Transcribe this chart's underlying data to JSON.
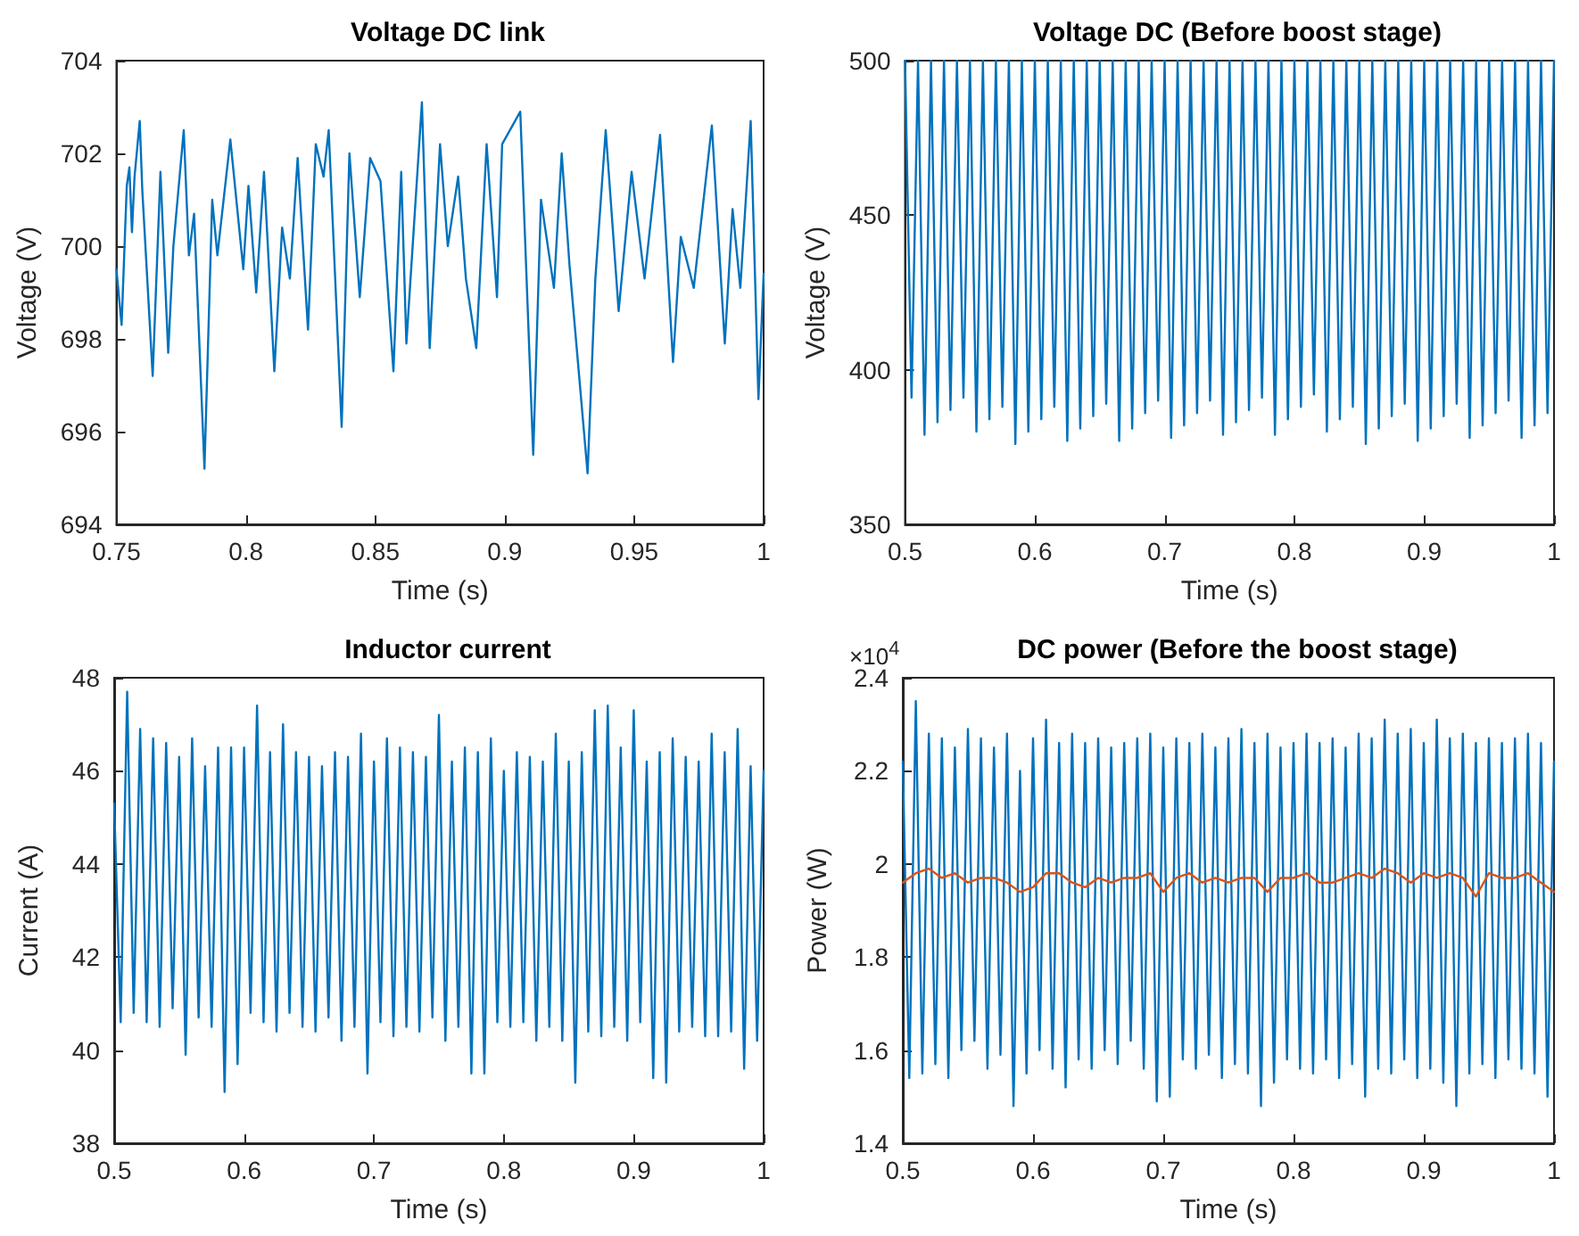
{
  "chart_data": [
    {
      "type": "line",
      "title": "Voltage DC link",
      "xlabel": "Time (s)",
      "ylabel": "Voltage (V)",
      "xlim": [
        0.75,
        1
      ],
      "xticks": [
        0.75,
        0.8,
        0.85,
        0.9,
        0.95,
        1
      ],
      "ylim": [
        694,
        704
      ],
      "yticks": [
        694,
        696,
        698,
        700,
        702,
        704
      ],
      "grid": false,
      "series": [
        {
          "color": "#0072bd",
          "x": [
            0.75,
            0.752,
            0.754,
            0.755,
            0.756,
            0.757,
            0.759,
            0.76,
            0.764,
            0.767,
            0.77,
            0.772,
            0.776,
            0.778,
            0.78,
            0.784,
            0.787,
            0.789,
            0.794,
            0.799,
            0.801,
            0.804,
            0.807,
            0.811,
            0.814,
            0.817,
            0.82,
            0.824,
            0.827,
            0.83,
            0.832,
            0.837,
            0.84,
            0.844,
            0.848,
            0.852,
            0.857,
            0.86,
            0.862,
            0.868,
            0.871,
            0.875,
            0.878,
            0.882,
            0.885,
            0.889,
            0.893,
            0.897,
            0.899,
            0.906,
            0.911,
            0.914,
            0.919,
            0.922,
            0.925,
            0.932,
            0.935,
            0.939,
            0.944,
            0.949,
            0.954,
            0.96,
            0.965,
            0.968,
            0.973,
            0.98,
            0.985,
            0.988,
            0.991,
            0.995,
            0.998,
            1
          ],
          "values": [
            699.5,
            698.3,
            701.3,
            701.7,
            700.3,
            701.5,
            702.7,
            701.2,
            697.2,
            701.6,
            697.7,
            700,
            702.5,
            699.8,
            700.7,
            695.2,
            701,
            699.8,
            702.3,
            699.5,
            701.3,
            699,
            701.6,
            697.3,
            700.4,
            699.3,
            701.9,
            698.2,
            702.2,
            701.5,
            702.5,
            696.1,
            702,
            698.9,
            701.9,
            701.4,
            697.3,
            701.6,
            697.9,
            703.1,
            697.8,
            702.2,
            700,
            701.5,
            699.3,
            697.8,
            702.2,
            698.9,
            702.2,
            702.9,
            695.5,
            701,
            699.1,
            702,
            699.6,
            695.1,
            699.3,
            702.5,
            698.6,
            701.6,
            699.3,
            702.4,
            697.5,
            700.2,
            699.1,
            702.6,
            697.9,
            700.8,
            699.1,
            702.7,
            696.7,
            699.4
          ]
        }
      ]
    },
    {
      "type": "line",
      "title": "Voltage DC (Before boost stage)",
      "xlabel": "Time (s)",
      "ylabel": "Voltage (V)",
      "xlim": [
        0.5,
        1
      ],
      "xticks": [
        0.5,
        0.6,
        0.7,
        0.8,
        0.9,
        1
      ],
      "ylim": [
        350,
        500
      ],
      "yticks": [
        350,
        400,
        450,
        500
      ],
      "grid": false,
      "x": [
        0.5,
        0.505,
        0.51,
        0.515,
        0.52,
        0.525,
        0.53,
        0.535,
        0.54,
        0.545,
        0.55,
        0.555,
        0.56,
        0.565,
        0.57,
        0.575,
        0.58,
        0.585,
        0.59,
        0.595,
        0.6,
        0.605,
        0.61,
        0.615,
        0.62,
        0.625,
        0.63,
        0.635,
        0.64,
        0.645,
        0.65,
        0.655,
        0.66,
        0.665,
        0.67,
        0.675,
        0.68,
        0.685,
        0.69,
        0.695,
        0.7,
        0.705,
        0.71,
        0.715,
        0.72,
        0.725,
        0.73,
        0.735,
        0.74,
        0.745,
        0.75,
        0.755,
        0.76,
        0.765,
        0.77,
        0.775,
        0.78,
        0.785,
        0.79,
        0.795,
        0.8,
        0.805,
        0.81,
        0.815,
        0.82,
        0.825,
        0.83,
        0.835,
        0.84,
        0.845,
        0.85,
        0.855,
        0.86,
        0.865,
        0.87,
        0.875,
        0.88,
        0.885,
        0.89,
        0.895,
        0.9,
        0.905,
        0.91,
        0.915,
        0.92,
        0.925,
        0.93,
        0.935,
        0.94,
        0.945,
        0.95,
        0.955,
        0.96,
        0.965,
        0.97,
        0.975,
        0.98,
        0.985,
        0.99,
        0.995,
        1
      ],
      "series": [
        {
          "color": "#0072bd",
          "values": [
            500,
            391,
            500,
            379,
            500,
            383,
            500,
            387,
            500,
            391,
            500,
            380,
            500,
            384,
            500,
            388,
            500,
            376,
            500,
            380,
            500,
            384,
            500,
            388,
            500,
            377,
            500,
            381,
            500,
            385,
            500,
            389,
            500,
            377,
            500,
            381,
            500,
            386,
            500,
            390,
            500,
            378,
            500,
            382,
            500,
            386,
            500,
            390,
            500,
            379,
            500,
            383,
            500,
            387,
            500,
            391,
            500,
            379,
            500,
            384,
            500,
            388,
            500,
            392,
            500,
            380,
            500,
            384,
            500,
            388,
            500,
            376,
            500,
            381,
            500,
            385,
            500,
            389,
            500,
            377,
            500,
            381,
            500,
            385,
            500,
            389,
            500,
            378,
            500,
            382,
            500,
            386,
            500,
            390,
            500,
            378,
            500,
            382,
            500,
            386,
            500
          ]
        }
      ]
    },
    {
      "type": "line",
      "title": "Inductor current",
      "xlabel": "Time (s)",
      "ylabel": "Current (A)",
      "xlim": [
        0.5,
        1
      ],
      "xticks": [
        0.5,
        0.6,
        0.7,
        0.8,
        0.9,
        1
      ],
      "ylim": [
        38,
        48
      ],
      "yticks": [
        38,
        40,
        42,
        44,
        46,
        48
      ],
      "grid": false,
      "x": [
        0.5,
        0.505,
        0.51,
        0.515,
        0.52,
        0.525,
        0.53,
        0.535,
        0.54,
        0.545,
        0.55,
        0.555,
        0.56,
        0.565,
        0.57,
        0.575,
        0.58,
        0.585,
        0.59,
        0.595,
        0.6,
        0.605,
        0.61,
        0.615,
        0.62,
        0.625,
        0.63,
        0.635,
        0.64,
        0.645,
        0.65,
        0.655,
        0.66,
        0.665,
        0.67,
        0.675,
        0.68,
        0.685,
        0.69,
        0.695,
        0.7,
        0.705,
        0.71,
        0.715,
        0.72,
        0.725,
        0.73,
        0.735,
        0.74,
        0.745,
        0.75,
        0.755,
        0.76,
        0.765,
        0.77,
        0.775,
        0.78,
        0.785,
        0.79,
        0.795,
        0.8,
        0.805,
        0.81,
        0.815,
        0.82,
        0.825,
        0.83,
        0.835,
        0.84,
        0.845,
        0.85,
        0.855,
        0.86,
        0.865,
        0.87,
        0.875,
        0.88,
        0.885,
        0.89,
        0.895,
        0.9,
        0.905,
        0.91,
        0.915,
        0.92,
        0.925,
        0.93,
        0.935,
        0.94,
        0.945,
        0.95,
        0.955,
        0.96,
        0.965,
        0.97,
        0.975,
        0.98,
        0.985,
        0.99,
        0.995,
        1
      ],
      "series": [
        {
          "color": "#0072bd",
          "values": [
            45.3,
            40.6,
            47.7,
            40.8,
            46.9,
            40.6,
            46.7,
            40.5,
            46.6,
            40.9,
            46.3,
            39.9,
            46.7,
            40.7,
            46.1,
            40.5,
            46.5,
            39.1,
            46.5,
            39.7,
            46.5,
            40.8,
            47.4,
            40.6,
            46.4,
            40.4,
            47.0,
            40.8,
            46.4,
            40.5,
            46.3,
            40.4,
            46.1,
            40.7,
            46.4,
            40.2,
            46.3,
            40.5,
            46.8,
            39.5,
            46.2,
            40.6,
            46.7,
            40.3,
            46.5,
            40.5,
            46.4,
            40.4,
            46.3,
            40.7,
            47.2,
            40.2,
            46.2,
            40.5,
            46.5,
            39.5,
            46.4,
            39.5,
            46.7,
            40.6,
            46.0,
            40.5,
            46.4,
            40.6,
            46.3,
            40.2,
            46.2,
            40.5,
            46.8,
            40.2,
            46.2,
            39.3,
            46.4,
            40.4,
            47.3,
            40.3,
            47.4,
            40.5,
            46.5,
            40.2,
            47.3,
            40.6,
            46.2,
            39.4,
            46.4,
            39.3,
            46.7,
            40.4,
            46.3,
            40.5,
            46.2,
            40.3,
            46.8,
            40.3,
            46.4,
            40.4,
            46.9,
            39.6,
            46.1,
            40.2,
            46.0
          ]
        }
      ]
    },
    {
      "type": "line",
      "title": "DC power (Before the boost stage)",
      "xlabel": "Time (s)",
      "ylabel": "Power (W)",
      "annotations": [
        "×10$^{4}$"
      ],
      "xlim": [
        0.5,
        1
      ],
      "xticks": [
        0.5,
        0.6,
        0.7,
        0.8,
        0.9,
        1
      ],
      "ylim": [
        1.4,
        2.4
      ],
      "yticks": [
        1.4,
        1.6,
        1.8,
        2,
        2.2,
        2.4
      ],
      "grid": false,
      "x": [
        0.5,
        0.505,
        0.51,
        0.515,
        0.52,
        0.525,
        0.53,
        0.535,
        0.54,
        0.545,
        0.55,
        0.555,
        0.56,
        0.565,
        0.57,
        0.575,
        0.58,
        0.585,
        0.59,
        0.595,
        0.6,
        0.605,
        0.61,
        0.615,
        0.62,
        0.625,
        0.63,
        0.635,
        0.64,
        0.645,
        0.65,
        0.655,
        0.66,
        0.665,
        0.67,
        0.675,
        0.68,
        0.685,
        0.69,
        0.695,
        0.7,
        0.705,
        0.71,
        0.715,
        0.72,
        0.725,
        0.73,
        0.735,
        0.74,
        0.745,
        0.75,
        0.755,
        0.76,
        0.765,
        0.77,
        0.775,
        0.78,
        0.785,
        0.79,
        0.795,
        0.8,
        0.805,
        0.81,
        0.815,
        0.82,
        0.825,
        0.83,
        0.835,
        0.84,
        0.845,
        0.85,
        0.855,
        0.86,
        0.865,
        0.87,
        0.875,
        0.88,
        0.885,
        0.89,
        0.895,
        0.9,
        0.905,
        0.91,
        0.915,
        0.92,
        0.925,
        0.93,
        0.935,
        0.94,
        0.945,
        0.95,
        0.955,
        0.96,
        0.965,
        0.97,
        0.975,
        0.98,
        0.985,
        0.99,
        0.995,
        1
      ],
      "series": [
        {
          "color": "#0072bd",
          "values": [
            2.22,
            1.54,
            2.35,
            1.55,
            2.28,
            1.57,
            2.27,
            1.54,
            2.25,
            1.6,
            2.29,
            1.62,
            2.27,
            1.56,
            2.25,
            1.59,
            2.28,
            1.48,
            2.2,
            1.55,
            2.27,
            1.6,
            2.31,
            1.56,
            2.26,
            1.52,
            2.28,
            1.58,
            2.26,
            1.56,
            2.27,
            1.6,
            2.25,
            1.57,
            2.26,
            1.62,
            2.27,
            1.56,
            2.28,
            1.49,
            2.25,
            1.5,
            2.27,
            1.58,
            2.26,
            1.56,
            2.28,
            1.59,
            2.25,
            1.54,
            2.27,
            1.57,
            2.29,
            1.55,
            2.26,
            1.48,
            2.28,
            1.53,
            2.25,
            1.58,
            2.26,
            1.56,
            2.28,
            1.55,
            2.26,
            1.58,
            2.27,
            1.54,
            2.25,
            1.57,
            2.28,
            1.5,
            2.27,
            1.56,
            2.31,
            1.55,
            2.28,
            1.58,
            2.29,
            1.54,
            2.26,
            1.56,
            2.31,
            1.53,
            2.27,
            1.48,
            2.28,
            1.55,
            2.26,
            1.57,
            2.27,
            1.54,
            2.26,
            1.58,
            2.27,
            1.56,
            2.28,
            1.55,
            2.26,
            1.5,
            2.22
          ]
        },
        {
          "color": "#d95319",
          "x": [
            0.5,
            0.51,
            0.52,
            0.53,
            0.54,
            0.55,
            0.56,
            0.57,
            0.58,
            0.59,
            0.6,
            0.61,
            0.62,
            0.63,
            0.64,
            0.65,
            0.66,
            0.67,
            0.68,
            0.69,
            0.7,
            0.71,
            0.72,
            0.73,
            0.74,
            0.75,
            0.76,
            0.77,
            0.78,
            0.79,
            0.8,
            0.81,
            0.82,
            0.83,
            0.84,
            0.85,
            0.86,
            0.87,
            0.88,
            0.89,
            0.9,
            0.91,
            0.92,
            0.93,
            0.94,
            0.95,
            0.96,
            0.97,
            0.98,
            0.99,
            1
          ],
          "values": [
            1.96,
            1.98,
            1.99,
            1.97,
            1.98,
            1.96,
            1.97,
            1.97,
            1.96,
            1.94,
            1.95,
            1.98,
            1.98,
            1.96,
            1.95,
            1.97,
            1.96,
            1.97,
            1.97,
            1.98,
            1.94,
            1.97,
            1.98,
            1.96,
            1.97,
            1.96,
            1.97,
            1.97,
            1.94,
            1.97,
            1.97,
            1.98,
            1.96,
            1.96,
            1.97,
            1.98,
            1.97,
            1.99,
            1.98,
            1.96,
            1.98,
            1.97,
            1.98,
            1.97,
            1.93,
            1.98,
            1.97,
            1.97,
            1.98,
            1.96,
            1.94
          ]
        }
      ]
    }
  ]
}
